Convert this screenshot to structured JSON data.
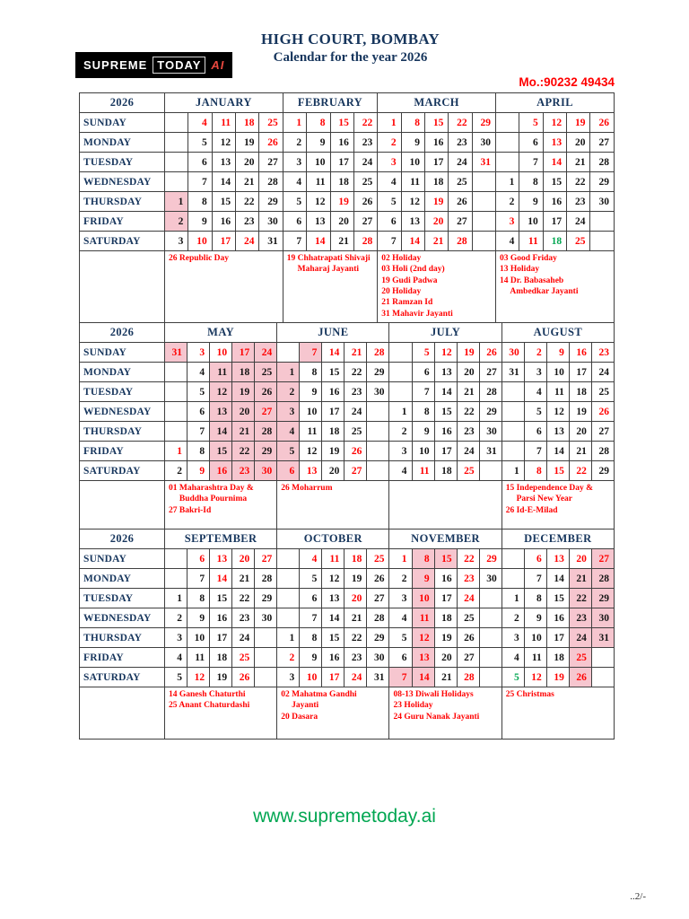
{
  "header": {
    "title": "HIGH COURT, BOMBAY",
    "subtitle": "Calendar for the year 2026",
    "phone": "Mo.:90232 49434",
    "logo": {
      "supreme": "SUPREME",
      "today": "TODAY",
      "ai": "AI"
    }
  },
  "footer": {
    "website": "www.supremetoday.ai",
    "page_number": "..2/-"
  },
  "colors": {
    "navy": "#17365D",
    "holiday_red": "#ff0000",
    "green": "#00A651",
    "vacation_pink_bg": "#F6C6CF"
  },
  "legend": {
    "R": "red holiday date",
    "G": "green date",
    "P": "pink vacation background"
  },
  "calendar": {
    "day_names": [
      "SUNDAY",
      "MONDAY",
      "TUESDAY",
      "WEDNESDAY",
      "THURSDAY",
      "FRIDAY",
      "SATURDAY"
    ],
    "groups": [
      {
        "year": "2026",
        "months": [
          {
            "name": "JANUARY",
            "cols": 5,
            "days": [
              [
                "",
                "4R",
                "11R",
                "18R",
                "25R"
              ],
              [
                "",
                "5",
                "12",
                "19",
                "26R"
              ],
              [
                "",
                "6",
                "13",
                "20",
                "27"
              ],
              [
                "",
                "7",
                "14",
                "21",
                "28"
              ],
              [
                "1P",
                "8",
                "15",
                "22",
                "29"
              ],
              [
                "2P",
                "9",
                "16",
                "23",
                "30"
              ],
              [
                "3",
                "10R",
                "17R",
                "24R",
                "31"
              ]
            ],
            "notes": [
              "26 Republic Day"
            ]
          },
          {
            "name": "FEBRUARY",
            "cols": 4,
            "days": [
              [
                "1R",
                "8R",
                "15R",
                "22R"
              ],
              [
                "2",
                "9",
                "16",
                "23"
              ],
              [
                "3",
                "10",
                "17",
                "24"
              ],
              [
                "4",
                "11",
                "18",
                "25"
              ],
              [
                "5",
                "12",
                "19R",
                "26"
              ],
              [
                "6",
                "13",
                "20",
                "27"
              ],
              [
                "7",
                "14R",
                "21",
                "28R"
              ]
            ],
            "notes": [
              "19 Chhatrapati Shivaji",
              "     Maharaj Jayanti"
            ]
          },
          {
            "name": "MARCH",
            "cols": 5,
            "days": [
              [
                "1R",
                "8R",
                "15R",
                "22R",
                "29R"
              ],
              [
                "2R",
                "9",
                "16",
                "23",
                "30"
              ],
              [
                "3R",
                "10",
                "17",
                "24",
                "31R"
              ],
              [
                "4",
                "11",
                "18",
                "25",
                ""
              ],
              [
                "5",
                "12",
                "19R",
                "26",
                ""
              ],
              [
                "6",
                "13",
                "20R",
                "27",
                ""
              ],
              [
                "7",
                "14R",
                "21R",
                "28R",
                ""
              ]
            ],
            "notes": [
              "02 Holiday",
              "03 Holi (2nd day)",
              "19 Gudi Padwa",
              "20 Holiday",
              "21 Ramzan Id",
              "31 Mahavir Jayanti"
            ]
          },
          {
            "name": "APRIL",
            "cols": 5,
            "days": [
              [
                "",
                "5R",
                "12R",
                "19R",
                "26R"
              ],
              [
                "",
                "6",
                "13R",
                "20",
                "27"
              ],
              [
                "",
                "7",
                "14R",
                "21",
                "28"
              ],
              [
                "1",
                "8",
                "15",
                "22",
                "29"
              ],
              [
                "2",
                "9",
                "16",
                "23",
                "30"
              ],
              [
                "3R",
                "10",
                "17",
                "24",
                ""
              ],
              [
                "4",
                "11R",
                "18G",
                "25R",
                ""
              ]
            ],
            "notes": [
              "03 Good Friday",
              "13 Holiday",
              "14 Dr. Babasaheb",
              "     Ambedkar Jayanti"
            ]
          }
        ]
      },
      {
        "year": "2026",
        "months": [
          {
            "name": "MAY",
            "cols": 5,
            "days": [
              [
                "31RP",
                "3R",
                "10R",
                "17RP",
                "24RP"
              ],
              [
                "",
                "4",
                "11P",
                "18P",
                "25P"
              ],
              [
                "",
                "5",
                "12P",
                "19P",
                "26P"
              ],
              [
                "",
                "6",
                "13P",
                "20P",
                "27RP"
              ],
              [
                "",
                "7",
                "14P",
                "21P",
                "28P"
              ],
              [
                "1R",
                "8",
                "15P",
                "22P",
                "29P"
              ],
              [
                "2",
                "9R",
                "16RP",
                "23RP",
                "30RP"
              ]
            ],
            "notes": [
              "01 Maharashtra Day &",
              "     Buddha Pournima",
              "27 Bakri-Id"
            ]
          },
          {
            "name": "JUNE",
            "cols": 5,
            "days": [
              [
                "",
                "7RP",
                "14R",
                "21R",
                "28R"
              ],
              [
                "1P",
                "8",
                "15",
                "22",
                "29"
              ],
              [
                "2P",
                "9",
                "16",
                "23",
                "30"
              ],
              [
                "3P",
                "10",
                "17",
                "24",
                ""
              ],
              [
                "4P",
                "11",
                "18",
                "25",
                ""
              ],
              [
                "5P",
                "12",
                "19",
                "26R",
                ""
              ],
              [
                "6RP",
                "13R",
                "20",
                "27R",
                ""
              ]
            ],
            "notes": [
              "26 Moharrum"
            ]
          },
          {
            "name": "JULY",
            "cols": 5,
            "days": [
              [
                "",
                "5R",
                "12R",
                "19R",
                "26R"
              ],
              [
                "",
                "6",
                "13",
                "20",
                "27"
              ],
              [
                "",
                "7",
                "14",
                "21",
                "28"
              ],
              [
                "1",
                "8",
                "15",
                "22",
                "29"
              ],
              [
                "2",
                "9",
                "16",
                "23",
                "30"
              ],
              [
                "3",
                "10",
                "17",
                "24",
                "31"
              ],
              [
                "4",
                "11R",
                "18",
                "25R",
                ""
              ]
            ],
            "notes": []
          },
          {
            "name": "AUGUST",
            "cols": 5,
            "days": [
              [
                "30R",
                "2R",
                "9R",
                "16R",
                "23R"
              ],
              [
                "31",
                "3",
                "10",
                "17",
                "24"
              ],
              [
                "",
                "4",
                "11",
                "18",
                "25"
              ],
              [
                "",
                "5",
                "12",
                "19",
                "26R"
              ],
              [
                "",
                "6",
                "13",
                "20",
                "27"
              ],
              [
                "",
                "7",
                "14",
                "21",
                "28"
              ],
              [
                "1",
                "8R",
                "15R",
                "22R",
                "29"
              ]
            ],
            "notes": [
              "15 Independence Day &",
              "     Parsi New Year",
              "26 Id-E-Milad"
            ]
          }
        ]
      },
      {
        "year": "2026",
        "months": [
          {
            "name": "SEPTEMBER",
            "cols": 5,
            "days": [
              [
                "",
                "6R",
                "13R",
                "20R",
                "27R"
              ],
              [
                "",
                "7",
                "14R",
                "21",
                "28"
              ],
              [
                "1",
                "8",
                "15",
                "22",
                "29"
              ],
              [
                "2",
                "9",
                "16",
                "23",
                "30"
              ],
              [
                "3",
                "10",
                "17",
                "24",
                ""
              ],
              [
                "4",
                "11",
                "18",
                "25R",
                ""
              ],
              [
                "5",
                "12R",
                "19",
                "26R",
                ""
              ]
            ],
            "notes": [
              "14 Ganesh Chaturthi",
              "25 Anant Chaturdashi"
            ]
          },
          {
            "name": "OCTOBER",
            "cols": 5,
            "days": [
              [
                "",
                "4R",
                "11R",
                "18R",
                "25R"
              ],
              [
                "",
                "5",
                "12",
                "19",
                "26"
              ],
              [
                "",
                "6",
                "13",
                "20R",
                "27"
              ],
              [
                "",
                "7",
                "14",
                "21",
                "28"
              ],
              [
                "1",
                "8",
                "15",
                "22",
                "29"
              ],
              [
                "2R",
                "9",
                "16",
                "23",
                "30"
              ],
              [
                "3",
                "10R",
                "17R",
                "24R",
                "31"
              ]
            ],
            "notes": [
              "02 Mahatma Gandhi",
              "     Jayanti",
              "20 Dasara"
            ]
          },
          {
            "name": "NOVEMBER",
            "cols": 5,
            "days": [
              [
                "1R",
                "8RP",
                "15RP",
                "22R",
                "29R"
              ],
              [
                "2",
                "9RP",
                "16",
                "23R",
                "30"
              ],
              [
                "3",
                "10RP",
                "17",
                "24R",
                ""
              ],
              [
                "4",
                "11RP",
                "18",
                "25",
                ""
              ],
              [
                "5",
                "12RP",
                "19",
                "26",
                ""
              ],
              [
                "6",
                "13RP",
                "20",
                "27",
                ""
              ],
              [
                "7RP",
                "14RP",
                "21",
                "28R",
                ""
              ]
            ],
            "notes": [
              "08-13 Diwali Holidays",
              "23 Holiday",
              "24 Guru Nanak Jayanti"
            ]
          },
          {
            "name": "DECEMBER",
            "cols": 5,
            "days": [
              [
                "",
                "6R",
                "13R",
                "20R",
                "27RP"
              ],
              [
                "",
                "7",
                "14",
                "21P",
                "28P"
              ],
              [
                "1",
                "8",
                "15",
                "22P",
                "29P"
              ],
              [
                "2",
                "9",
                "16",
                "23P",
                "30P"
              ],
              [
                "3",
                "10",
                "17",
                "24P",
                "31P"
              ],
              [
                "4",
                "11",
                "18",
                "25RP",
                ""
              ],
              [
                "5G",
                "12R",
                "19R",
                "26RP",
                ""
              ]
            ],
            "notes": [
              "25 Christmas"
            ]
          }
        ]
      }
    ]
  }
}
